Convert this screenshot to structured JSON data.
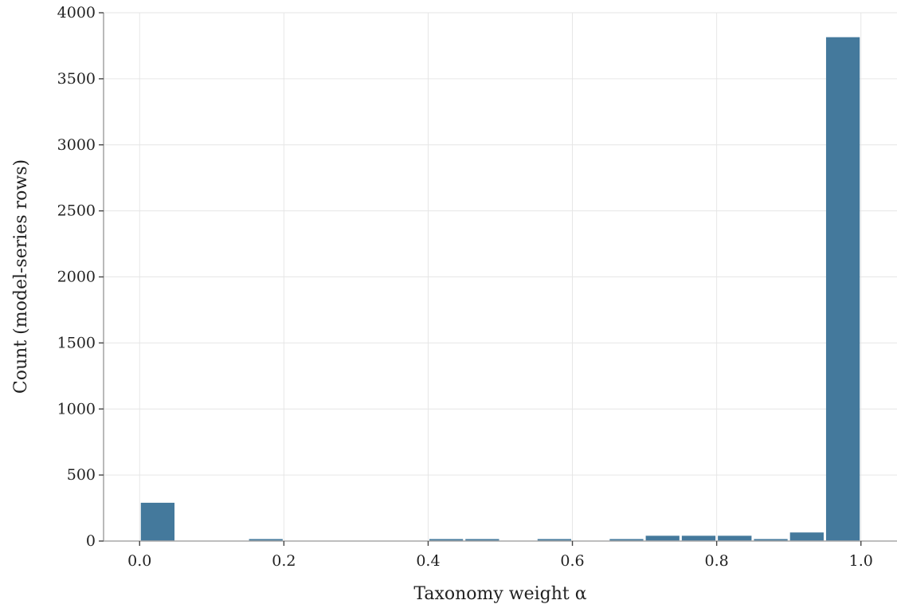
{
  "chart_data": {
    "type": "bar",
    "title": "",
    "xlabel": "Taxonomy weight α",
    "ylabel": "Count (model-series rows)",
    "xlim": [
      -0.05,
      1.05
    ],
    "ylim": [
      0,
      4000
    ],
    "xticks": [
      0.0,
      0.2,
      0.4,
      0.6,
      0.8,
      1.0
    ],
    "xtick_labels": [
      "0.0",
      "0.2",
      "0.4",
      "0.6",
      "0.8",
      "1.0"
    ],
    "yticks": [
      0,
      500,
      1000,
      1500,
      2000,
      2500,
      3000,
      3500,
      4000
    ],
    "ytick_labels": [
      "0",
      "500",
      "1000",
      "1500",
      "2000",
      "2500",
      "3000",
      "3500",
      "4000"
    ],
    "bin_width": 0.05,
    "bins": [
      {
        "start": 0.0,
        "count": 290
      },
      {
        "start": 0.05,
        "count": 0
      },
      {
        "start": 0.1,
        "count": 0
      },
      {
        "start": 0.15,
        "count": 10
      },
      {
        "start": 0.2,
        "count": 0
      },
      {
        "start": 0.25,
        "count": 0
      },
      {
        "start": 0.3,
        "count": 0
      },
      {
        "start": 0.35,
        "count": 0
      },
      {
        "start": 0.4,
        "count": 10
      },
      {
        "start": 0.45,
        "count": 10
      },
      {
        "start": 0.5,
        "count": 0
      },
      {
        "start": 0.55,
        "count": 10
      },
      {
        "start": 0.6,
        "count": 0
      },
      {
        "start": 0.65,
        "count": 10
      },
      {
        "start": 0.7,
        "count": 40
      },
      {
        "start": 0.75,
        "count": 40
      },
      {
        "start": 0.8,
        "count": 40
      },
      {
        "start": 0.85,
        "count": 10
      },
      {
        "start": 0.9,
        "count": 65
      },
      {
        "start": 0.95,
        "count": 3815
      }
    ],
    "bar_color": "#44799c",
    "grid": true,
    "legend": "none"
  }
}
